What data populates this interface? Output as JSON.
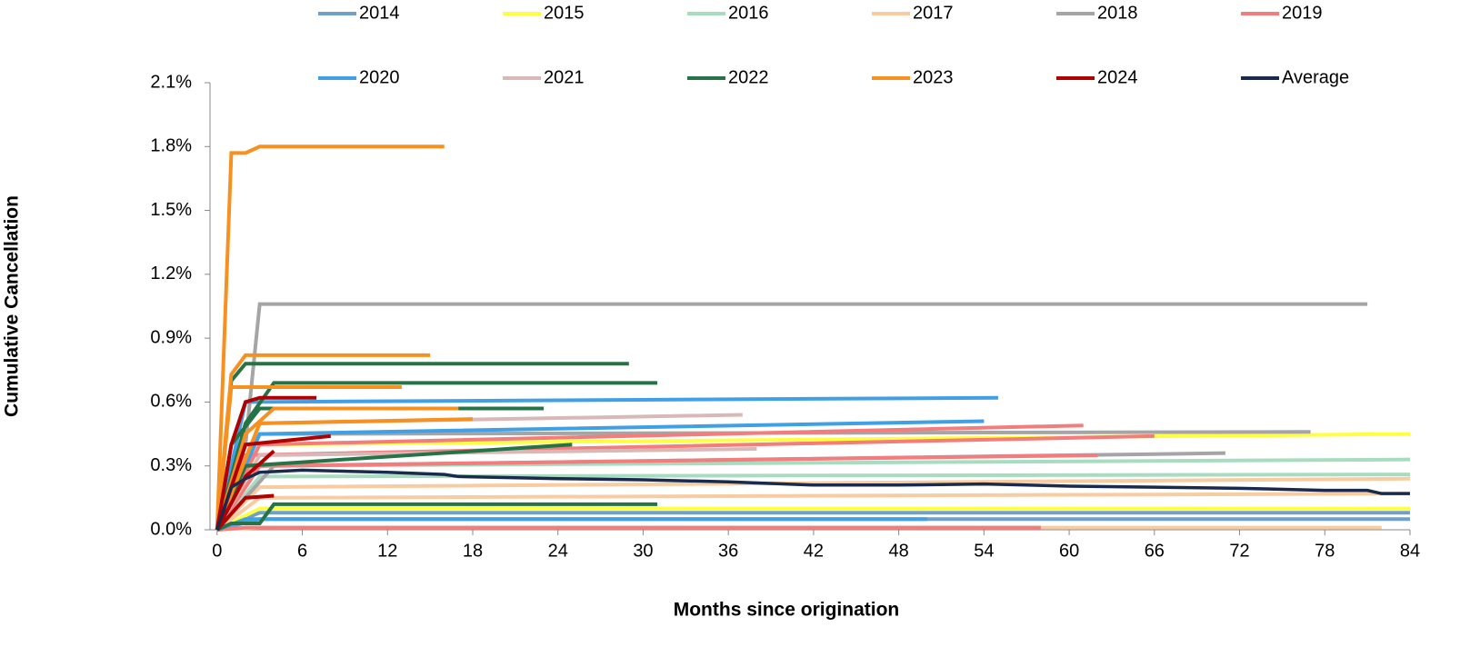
{
  "chart_data": {
    "type": "line",
    "y_label": "Cumulative Cancellation",
    "x_label": "Months since origination",
    "xlim": [
      -0.5,
      84
    ],
    "xticks": [
      0,
      6,
      12,
      18,
      24,
      30,
      36,
      42,
      48,
      54,
      60,
      66,
      72,
      78,
      84
    ],
    "ylim": [
      0,
      2.1
    ],
    "yticks": [
      {
        "value": 0,
        "label": "0.0%"
      },
      {
        "value": 0.3,
        "label": "0.3%"
      },
      {
        "value": 0.6,
        "label": "0.6%"
      },
      {
        "value": 0.9,
        "label": "0.9%"
      },
      {
        "value": 1.2,
        "label": "1.2%"
      },
      {
        "value": 1.5,
        "label": "1.5%"
      },
      {
        "value": 1.8,
        "label": "1.8%"
      },
      {
        "value": 2.1,
        "label": "2.1%"
      }
    ],
    "legend": "top",
    "series": [
      {
        "name": "2014",
        "color": "#6fa0c8",
        "lines": [
          {
            "x": [
              0,
              3,
              84
            ],
            "values": [
              0,
              0.08,
              0.08
            ]
          },
          {
            "x": [
              0,
              3,
              84
            ],
            "values": [
              0,
              0.05,
              0.05
            ]
          }
        ]
      },
      {
        "name": "2015",
        "color": "#ffff40",
        "lines": [
          {
            "x": [
              0,
              3,
              84
            ],
            "values": [
              0,
              0.4,
              0.45
            ]
          },
          {
            "x": [
              0,
              3,
              84
            ],
            "values": [
              0,
              0.1,
              0.1
            ]
          }
        ]
      },
      {
        "name": "2016",
        "color": "#a8dcc0",
        "lines": [
          {
            "x": [
              0,
              3,
              84
            ],
            "values": [
              0,
              0.3,
              0.33
            ]
          },
          {
            "x": [
              0,
              3,
              84
            ],
            "values": [
              0,
              0.25,
              0.26
            ]
          }
        ]
      },
      {
        "name": "2017",
        "color": "#f8cba0",
        "lines": [
          {
            "x": [
              0,
              3,
              84
            ],
            "values": [
              0,
              0.2,
              0.24
            ]
          },
          {
            "x": [
              0,
              3,
              84
            ],
            "values": [
              0,
              0.15,
              0.17
            ]
          },
          {
            "x": [
              0,
              3,
              82
            ],
            "values": [
              0,
              0.01,
              0.01
            ]
          }
        ]
      },
      {
        "name": "2018",
        "color": "#a5a5a5",
        "lines": [
          {
            "x": [
              0,
              2,
              3,
              81
            ],
            "values": [
              0,
              0.4,
              1.06,
              1.06
            ]
          },
          {
            "x": [
              0,
              3,
              77
            ],
            "values": [
              0,
              0.45,
              0.46
            ]
          },
          {
            "x": [
              0,
              4,
              71
            ],
            "values": [
              0,
              0.3,
              0.36
            ]
          }
        ]
      },
      {
        "name": "2019",
        "color": "#f47c7c",
        "lines": [
          {
            "x": [
              0,
              3,
              61
            ],
            "values": [
              0,
              0.4,
              0.49
            ]
          },
          {
            "x": [
              0,
              2,
              66
            ],
            "values": [
              0,
              0.35,
              0.44
            ]
          },
          {
            "x": [
              0,
              3,
              62
            ],
            "values": [
              0,
              0.3,
              0.35
            ]
          },
          {
            "x": [
              0,
              2,
              58
            ],
            "values": [
              0,
              0.01,
              0.01
            ]
          }
        ]
      },
      {
        "name": "2020",
        "color": "#3fa0e5",
        "lines": [
          {
            "x": [
              0,
              2,
              55
            ],
            "values": [
              0,
              0.6,
              0.62
            ]
          },
          {
            "x": [
              0,
              3,
              54
            ],
            "values": [
              0,
              0.45,
              0.51
            ]
          },
          {
            "x": [
              0,
              2,
              50
            ],
            "values": [
              0,
              0.05,
              0.05
            ]
          }
        ]
      },
      {
        "name": "2021",
        "color": "#d9b8b8",
        "lines": [
          {
            "x": [
              0,
              3,
              37
            ],
            "values": [
              0,
              0.5,
              0.54
            ]
          },
          {
            "x": [
              0,
              3,
              38
            ],
            "values": [
              0,
              0.35,
              0.38
            ]
          }
        ]
      },
      {
        "name": "2022",
        "color": "#267347",
        "lines": [
          {
            "x": [
              0,
              1,
              2,
              29
            ],
            "values": [
              0,
              0.7,
              0.78,
              0.78
            ]
          },
          {
            "x": [
              0,
              2,
              4,
              31
            ],
            "values": [
              0,
              0.5,
              0.69,
              0.69
            ]
          },
          {
            "x": [
              0,
              1,
              3,
              23
            ],
            "values": [
              0,
              0.4,
              0.57,
              0.57
            ]
          },
          {
            "x": [
              0,
              2,
              25
            ],
            "values": [
              0,
              0.3,
              0.4
            ]
          },
          {
            "x": [
              0,
              1,
              3,
              4,
              31
            ],
            "values": [
              0,
              0.03,
              0.03,
              0.12,
              0.12
            ]
          }
        ]
      },
      {
        "name": "2023",
        "color": "#f7901e",
        "lines": [
          {
            "x": [
              0,
              1,
              2,
              3,
              16
            ],
            "values": [
              0,
              1.77,
              1.77,
              1.8,
              1.8
            ]
          },
          {
            "x": [
              0,
              1,
              2,
              15
            ],
            "values": [
              0,
              0.73,
              0.82,
              0.82
            ]
          },
          {
            "x": [
              0,
              1,
              13
            ],
            "values": [
              0,
              0.67,
              0.67
            ]
          },
          {
            "x": [
              0,
              2,
              4,
              17
            ],
            "values": [
              0,
              0.45,
              0.57,
              0.57
            ]
          },
          {
            "x": [
              0,
              3,
              18
            ],
            "values": [
              0,
              0.5,
              0.52
            ]
          }
        ]
      },
      {
        "name": "2024",
        "color": "#b00000",
        "lines": [
          {
            "x": [
              0,
              1,
              2,
              3,
              7
            ],
            "values": [
              0,
              0.4,
              0.6,
              0.62,
              0.62
            ]
          },
          {
            "x": [
              0,
              2,
              8
            ],
            "values": [
              0,
              0.4,
              0.44
            ]
          },
          {
            "x": [
              0,
              2,
              4
            ],
            "values": [
              0,
              0.25,
              0.37
            ]
          },
          {
            "x": [
              0,
              2,
              4
            ],
            "values": [
              0,
              0.15,
              0.16
            ]
          }
        ]
      },
      {
        "name": "Average",
        "color": "#1a2a4e",
        "lines": [
          {
            "x": [
              0,
              1,
              2,
              3,
              6,
              12,
              16,
              17,
              24,
              30,
              36,
              42,
              48,
              54,
              60,
              66,
              72,
              78,
              81,
              82,
              84
            ],
            "values": [
              0,
              0.2,
              0.24,
              0.27,
              0.28,
              0.27,
              0.26,
              0.25,
              0.24,
              0.235,
              0.225,
              0.21,
              0.21,
              0.215,
              0.205,
              0.2,
              0.195,
              0.185,
              0.185,
              0.17,
              0.17
            ]
          }
        ]
      }
    ]
  }
}
